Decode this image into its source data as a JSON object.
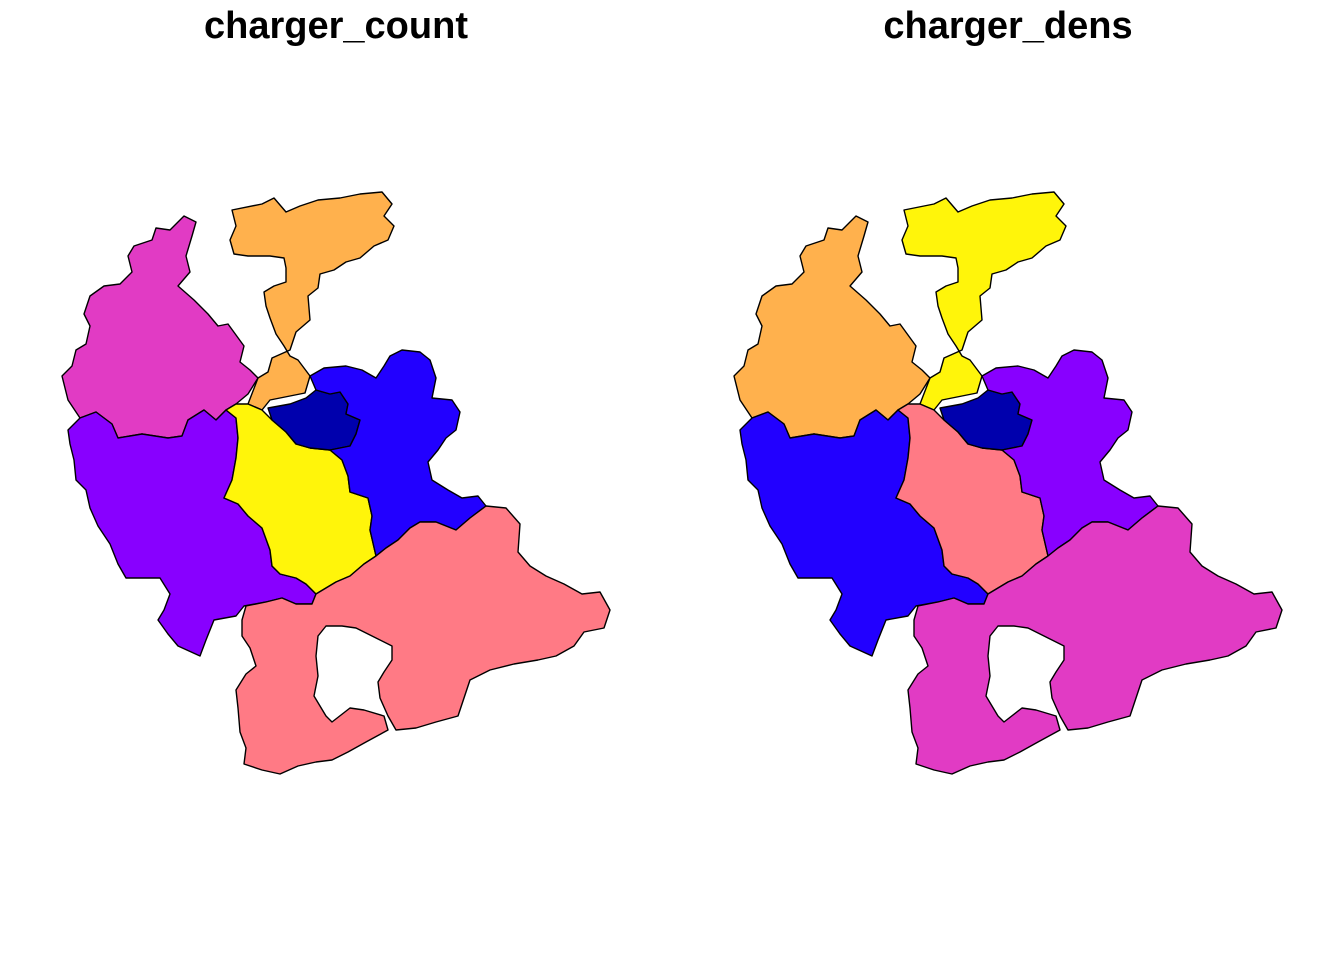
{
  "panels": [
    {
      "title": "charger_count",
      "fills": {
        "north": "#FFB14D",
        "northwest": "#E13BC4",
        "west": "#8800FF",
        "center": "#FFF50A",
        "capital": "#0000AD",
        "east": "#2200FF",
        "south": "#FF7A85"
      }
    },
    {
      "title": "charger_dens",
      "fills": {
        "north": "#FFF50A",
        "northwest": "#FFB14D",
        "west": "#2200FF",
        "center": "#FF7A85",
        "capital": "#0000AD",
        "east": "#8800FF",
        "south": "#E13BC4"
      }
    }
  ]
}
